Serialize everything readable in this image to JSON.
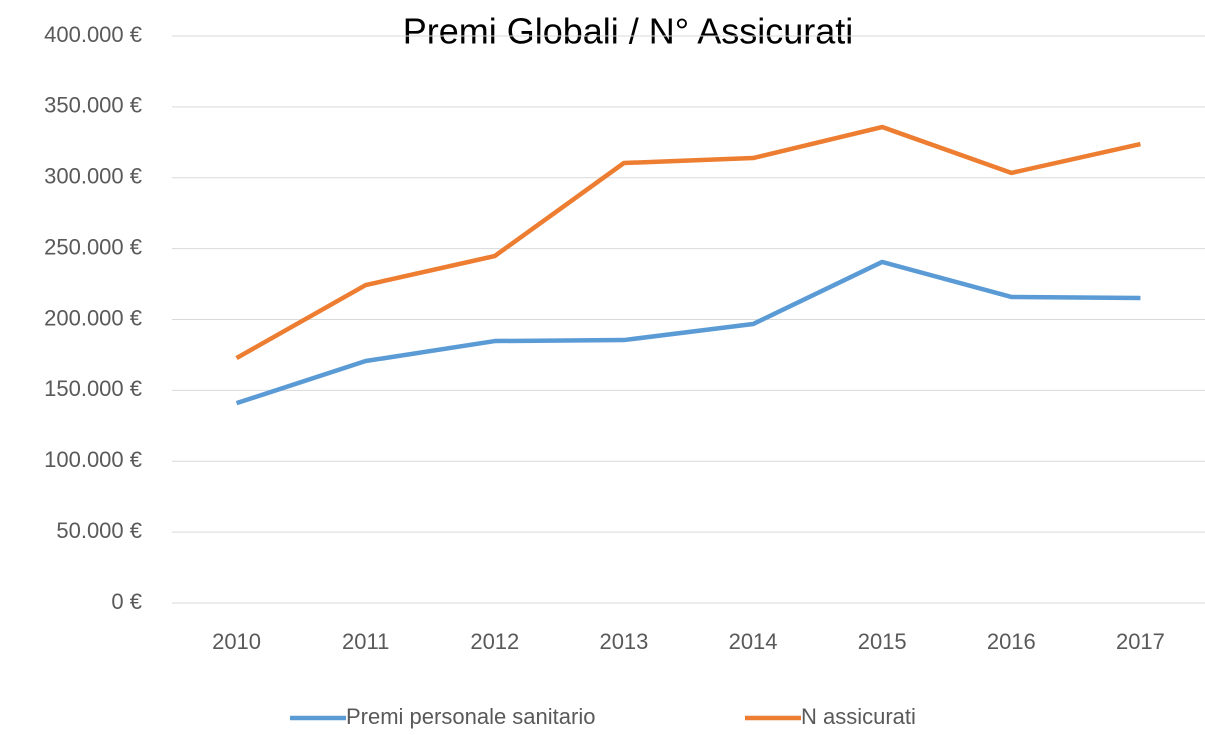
{
  "chart_data": {
    "type": "line",
    "title": "Premi Globali / N° Assicurati",
    "categories": [
      "2010",
      "2011",
      "2012",
      "2013",
      "2014",
      "2015",
      "2016",
      "2017"
    ],
    "series": [
      {
        "name": "Premi personale sanitario",
        "color": "#5b9bd5",
        "values": [
          141000,
          170700,
          184800,
          185500,
          196800,
          240600,
          215900,
          215200
        ]
      },
      {
        "name": "N assicurati",
        "color": "#ed7d31",
        "values": [
          172800,
          224300,
          244800,
          310400,
          313900,
          335800,
          303400,
          323800
        ]
      }
    ],
    "ylim": [
      0,
      400000
    ],
    "yticks": [
      {
        "value": 0,
        "label": "0 €"
      },
      {
        "value": 50000,
        "label": "50.000 €"
      },
      {
        "value": 100000,
        "label": "100.000 €"
      },
      {
        "value": 150000,
        "label": "150.000 €"
      },
      {
        "value": 200000,
        "label": "200.000 €"
      },
      {
        "value": 250000,
        "label": "250.000 €"
      },
      {
        "value": 300000,
        "label": "300.000 €"
      },
      {
        "value": 350000,
        "label": "350.000 €"
      },
      {
        "value": 400000,
        "label": "400.000 €"
      }
    ],
    "grid": true,
    "legend": "bottom"
  }
}
